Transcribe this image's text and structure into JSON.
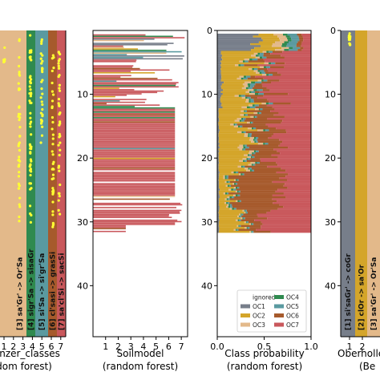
{
  "chart_data": [
    {
      "type": "scatter",
      "panel": "classes_left",
      "xlabel_lines": [
        "llenzer_classes",
        "dom forest)"
      ],
      "x_ticks": [
        "1",
        "2",
        "3",
        "4",
        "5",
        "6",
        "7"
      ],
      "bands": [
        {
          "label": "[3] sa'Gr' -> Or'Sa",
          "color": "#e3b98a"
        },
        {
          "label": "[4] sigr'Sa -> sisaGr",
          "color": "#2f8a4f"
        },
        {
          "label": "[5] si'Sa -> si'gr'Sa",
          "color": "#5a9aa0"
        },
        {
          "label": "[6] cl'sasi -> grasSi",
          "color": "#a65a2c"
        },
        {
          "label": "[7] sa'cl'Si -> sacSi",
          "color": "#c9585c"
        }
      ],
      "point_color": "#ffff33"
    },
    {
      "type": "bar",
      "panel": "soilmodel",
      "xlabel_lines": [
        "Soilmodel",
        "(random forest)"
      ],
      "x_ticks": [
        "1",
        "2",
        "3",
        "4",
        "5",
        "6",
        "7"
      ],
      "y_ticks": [
        "10",
        "20",
        "30",
        "40"
      ],
      "xlim": [
        0,
        7.5
      ],
      "ylim": [
        48,
        0
      ],
      "colors": [
        "#777e8a",
        "#d4a52a",
        "#e3b98a",
        "#2f8a4f",
        "#5a9aa0",
        "#a65a2c",
        "#c9585c"
      ],
      "extent": [
        0.5,
        31.5
      ]
    },
    {
      "type": "area",
      "panel": "class_probability",
      "xlabel_lines": [
        "Class probability",
        "(random forest)"
      ],
      "x_ticks": [
        "0.0",
        "0.5",
        "1.0"
      ],
      "y_ticks": [
        "0",
        "10",
        "20",
        "30",
        "40"
      ],
      "xlim": [
        0,
        1
      ],
      "ylim": [
        48,
        0
      ],
      "legend": [
        {
          "label": "ignored",
          "color": ""
        },
        {
          "label": "OC4",
          "color": "#2f8a4f"
        },
        {
          "label": "OC1",
          "color": "#777e8a"
        },
        {
          "label": "OC5",
          "color": "#5a9aa0"
        },
        {
          "label": "OC2",
          "color": "#d4a52a"
        },
        {
          "label": "OC6",
          "color": "#a65a2c"
        },
        {
          "label": "OC3",
          "color": "#e3b98a"
        },
        {
          "label": "OC7",
          "color": "#c9585c"
        }
      ],
      "legend_position": "lower-center"
    },
    {
      "type": "scatter",
      "panel": "classes_right",
      "xlabel_lines": [
        "Oberholle",
        "(Be"
      ],
      "x_ticks": [
        "1",
        "2"
      ],
      "y_ticks": [
        "0",
        "10",
        "20",
        "30",
        "40"
      ],
      "bands": [
        {
          "label": "[1] si'saGr' -> coGr",
          "color": "#777e8a"
        },
        {
          "label": "[2] clOr -> sa'Or",
          "color": "#d4a52a"
        },
        {
          "label": "[3] sa'Gr' -> Or'Sa",
          "color": "#e3b98a"
        }
      ],
      "point_color": "#ffff33"
    }
  ]
}
